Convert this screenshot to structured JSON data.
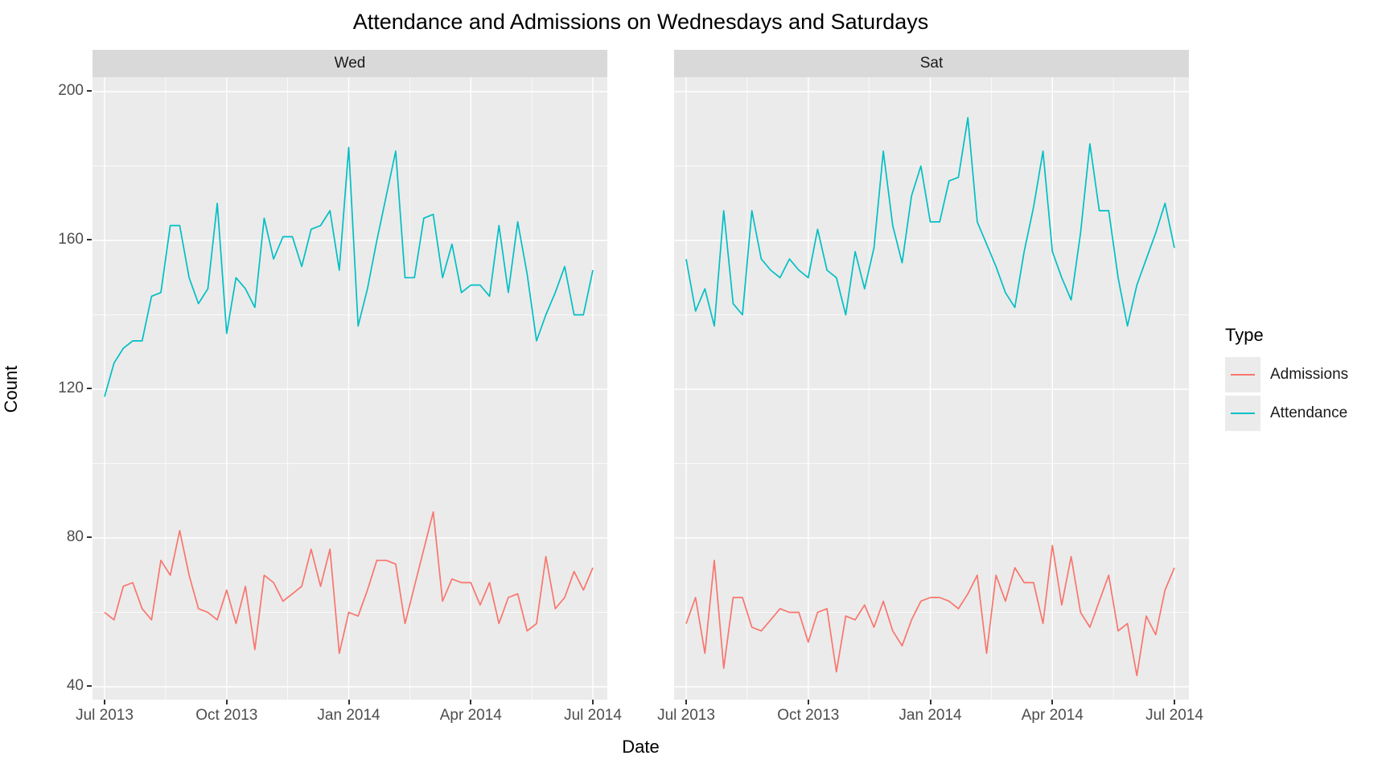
{
  "title": "Attendance and Admissions on Wednesdays and Saturdays",
  "axes": {
    "x_label": "Date",
    "y_label": "Count",
    "x_ticks": [
      "Jul 2013",
      "Oct 2013",
      "Jan 2014",
      "Apr 2014",
      "Jul 2014"
    ],
    "y_ticks": [
      "200",
      "160",
      "120",
      "80",
      "40"
    ]
  },
  "legend": {
    "title": "Type",
    "entries": [
      {
        "label": "Admissions",
        "color": "#F8766D"
      },
      {
        "label": "Attendance",
        "color": "#00BFC4"
      }
    ]
  },
  "colors": {
    "panel_background": "#EBEBEB",
    "strip_background": "#D9D9D9",
    "grid": "#FFFFFF",
    "tick_text": "#4D4D4D",
    "admissions": "#F8766D",
    "attendance": "#00BFC4"
  },
  "chart_data": {
    "type": "line",
    "title": "Attendance and Admissions on Wednesdays and Saturdays",
    "xlabel": "Date",
    "ylabel": "Count",
    "x_unit": "weekly observations from Jul 2013 to Jul 2014",
    "x_tick_labels": [
      "Jul 2013",
      "Oct 2013",
      "Jan 2014",
      "Apr 2014",
      "Jul 2014"
    ],
    "y_tick_labels": [
      200,
      160,
      120,
      80,
      40
    ],
    "ylim": [
      36,
      204
    ],
    "grid": "white major and minor gridlines on gray panel",
    "legend_position": "right",
    "legend_title": "Type",
    "facets": [
      {
        "label": "Wed",
        "series": [
          {
            "name": "Admissions",
            "color": "#F8766D",
            "values": [
              60,
              58,
              67,
              68,
              61,
              58,
              74,
              70,
              82,
              70,
              61,
              60,
              58,
              66,
              57,
              67,
              50,
              70,
              68,
              63,
              65,
              67,
              77,
              67,
              77,
              49,
              60,
              59,
              66,
              74,
              74,
              73,
              57,
              67,
              77,
              87,
              63,
              69,
              68,
              68,
              62,
              68,
              57,
              64,
              65,
              55,
              57,
              75,
              61,
              64,
              71,
              66,
              72
            ]
          },
          {
            "name": "Attendance",
            "color": "#00BFC4",
            "values": [
              118,
              127,
              131,
              133,
              133,
              145,
              146,
              164,
              164,
              150,
              143,
              147,
              170,
              135,
              150,
              147,
              142,
              166,
              155,
              161,
              161,
              153,
              163,
              164,
              168,
              152,
              185,
              137,
              147,
              160,
              172,
              184,
              150,
              150,
              166,
              167,
              150,
              159,
              146,
              148,
              148,
              145,
              164,
              146,
              165,
              151,
              133,
              140,
              146,
              153,
              140,
              140,
              152
            ]
          }
        ]
      },
      {
        "label": "Sat",
        "series": [
          {
            "name": "Admissions",
            "color": "#F8766D",
            "values": [
              57,
              64,
              49,
              74,
              45,
              64,
              64,
              56,
              55,
              58,
              61,
              60,
              60,
              52,
              60,
              61,
              44,
              59,
              58,
              62,
              56,
              63,
              55,
              51,
              58,
              63,
              64,
              64,
              63,
              61,
              65,
              70,
              49,
              70,
              63,
              72,
              68,
              68,
              57,
              78,
              62,
              75,
              60,
              56,
              63,
              70,
              55,
              57,
              43,
              59,
              54,
              66,
              72
            ]
          },
          {
            "name": "Attendance",
            "color": "#00BFC4",
            "values": [
              155,
              141,
              147,
              137,
              168,
              143,
              140,
              168,
              155,
              152,
              150,
              155,
              152,
              150,
              163,
              152,
              150,
              140,
              157,
              147,
              158,
              184,
              164,
              154,
              172,
              180,
              165,
              165,
              176,
              177,
              193,
              165,
              159,
              153,
              146,
              142,
              157,
              169,
              184,
              157,
              150,
              144,
              162,
              186,
              168,
              168,
              150,
              137,
              148,
              155,
              162,
              170,
              158
            ]
          }
        ]
      }
    ]
  }
}
